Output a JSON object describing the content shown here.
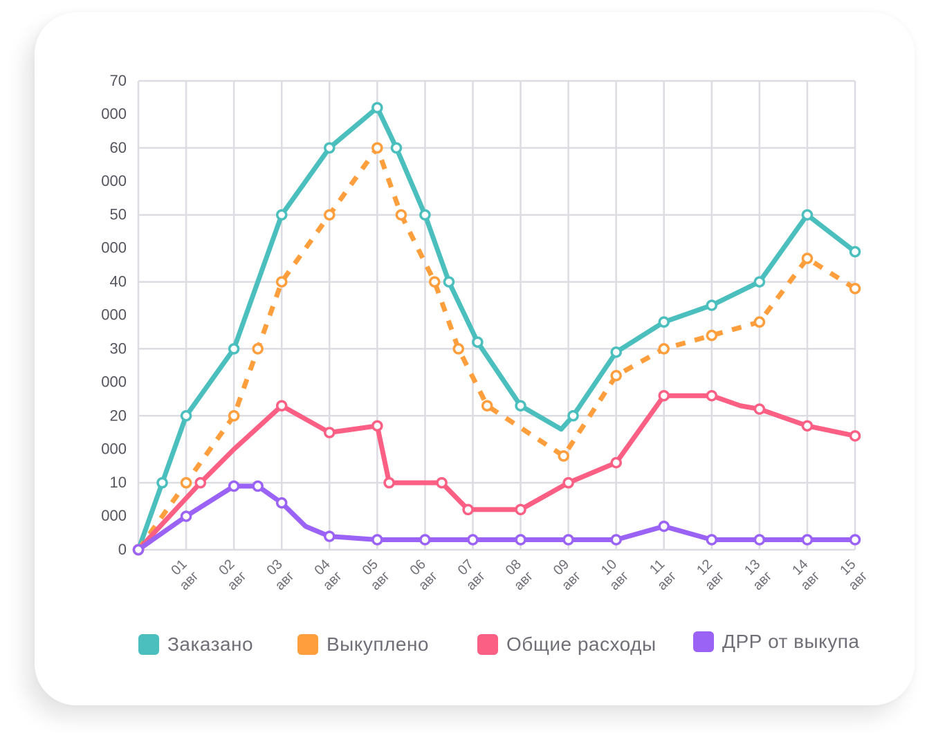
{
  "chart_data": {
    "type": "line",
    "y_tick_lines": [
      [
        "70",
        "000"
      ],
      [
        "60",
        "000"
      ],
      [
        "50",
        "000"
      ],
      [
        "40",
        "000"
      ],
      [
        "30",
        "000"
      ],
      [
        "20",
        "000"
      ],
      [
        "10",
        "000"
      ],
      [
        "0"
      ]
    ],
    "x_tick_lines": [
      [
        "01",
        "авг"
      ],
      [
        "02",
        "авг"
      ],
      [
        "03",
        "авг"
      ],
      [
        "04",
        "авг"
      ],
      [
        "05",
        "авг"
      ],
      [
        "06",
        "авг"
      ],
      [
        "07",
        "авг"
      ],
      [
        "08",
        "авг"
      ],
      [
        "09",
        "авг"
      ],
      [
        "10",
        "авг"
      ],
      [
        "11",
        "авг"
      ],
      [
        "12",
        "авг"
      ],
      [
        "13",
        "авг"
      ],
      [
        "14",
        "авг"
      ],
      [
        "15",
        "авг"
      ]
    ],
    "x_range": [
      0,
      15
    ],
    "ylim": [
      0,
      70000
    ],
    "grid": true,
    "legend_position": "bottom",
    "series": [
      {
        "name": "Заказано",
        "color": "#4bbfbd",
        "dashed": false,
        "points": [
          [
            0,
            0,
            true
          ],
          [
            0.5,
            10000,
            true
          ],
          [
            1,
            20000,
            true
          ],
          [
            2,
            30000,
            true
          ],
          [
            2.5,
            40000,
            false
          ],
          [
            3,
            50000,
            true
          ],
          [
            4,
            60000,
            true
          ],
          [
            5,
            66000,
            true
          ],
          [
            5.4,
            60000,
            true
          ],
          [
            6,
            50000,
            true
          ],
          [
            6.5,
            40000,
            true
          ],
          [
            7.1,
            31000,
            true
          ],
          [
            8,
            21500,
            true
          ],
          [
            8.85,
            18000,
            false
          ],
          [
            9.1,
            20000,
            true
          ],
          [
            10,
            29500,
            true
          ],
          [
            11,
            34000,
            true
          ],
          [
            12,
            36500,
            true
          ],
          [
            13,
            40000,
            true
          ],
          [
            14,
            50000,
            true
          ],
          [
            15,
            44500,
            true
          ]
        ]
      },
      {
        "name": "Выкуплено",
        "color": "#ff9e3d",
        "dashed": true,
        "points": [
          [
            0,
            0,
            true
          ],
          [
            1,
            10000,
            true
          ],
          [
            2,
            20000,
            true
          ],
          [
            2.5,
            30000,
            true
          ],
          [
            3,
            40000,
            true
          ],
          [
            4,
            50000,
            true
          ],
          [
            5,
            60000,
            true
          ],
          [
            5.5,
            50000,
            true
          ],
          [
            6.2,
            40000,
            true
          ],
          [
            6.7,
            30000,
            true
          ],
          [
            7.3,
            21500,
            true
          ],
          [
            8.9,
            14000,
            true
          ],
          [
            10,
            26000,
            true
          ],
          [
            11,
            30000,
            true
          ],
          [
            12,
            32000,
            true
          ],
          [
            13,
            34000,
            true
          ],
          [
            14,
            43500,
            true
          ],
          [
            15,
            39000,
            true
          ]
        ]
      },
      {
        "name": "Общие расходы",
        "color": "#fc5f84",
        "dashed": false,
        "points": [
          [
            0,
            0,
            true
          ],
          [
            1.3,
            10000,
            true
          ],
          [
            2,
            15000,
            false
          ],
          [
            3,
            21500,
            true
          ],
          [
            4,
            17500,
            true
          ],
          [
            5,
            18500,
            true
          ],
          [
            5.25,
            10000,
            true
          ],
          [
            6.35,
            10000,
            true
          ],
          [
            6.9,
            6000,
            true
          ],
          [
            8,
            6000,
            true
          ],
          [
            9,
            10000,
            true
          ],
          [
            10,
            13000,
            true
          ],
          [
            11,
            23000,
            true
          ],
          [
            12,
            23000,
            true
          ],
          [
            12.6,
            21500,
            false
          ],
          [
            13,
            21000,
            true
          ],
          [
            14,
            18500,
            true
          ],
          [
            15,
            17000,
            true
          ]
        ]
      },
      {
        "name": "ДРР от выкупа",
        "color": "#9b63f5",
        "dashed": false,
        "points": [
          [
            0,
            0,
            true
          ],
          [
            1,
            5000,
            true
          ],
          [
            2,
            9500,
            true
          ],
          [
            2.5,
            9500,
            true
          ],
          [
            3,
            7000,
            true
          ],
          [
            3.5,
            3500,
            false
          ],
          [
            4,
            2000,
            true
          ],
          [
            5,
            1500,
            true
          ],
          [
            6,
            1500,
            true
          ],
          [
            7,
            1500,
            true
          ],
          [
            8,
            1500,
            true
          ],
          [
            9,
            1500,
            true
          ],
          [
            10,
            1500,
            true
          ],
          [
            11,
            3500,
            true
          ],
          [
            12,
            1500,
            true
          ],
          [
            13,
            1500,
            true
          ],
          [
            14,
            1500,
            true
          ],
          [
            15,
            1500,
            true
          ]
        ]
      }
    ]
  },
  "legend": [
    {
      "label": "Заказано",
      "color": "#4bbfbd"
    },
    {
      "label": "Выкуплено",
      "color": "#ff9e3d"
    },
    {
      "label": "Общие расходы",
      "color": "#fc5f84"
    },
    {
      "label": "ДРР от выкупа",
      "color": "#9b63f5"
    }
  ]
}
